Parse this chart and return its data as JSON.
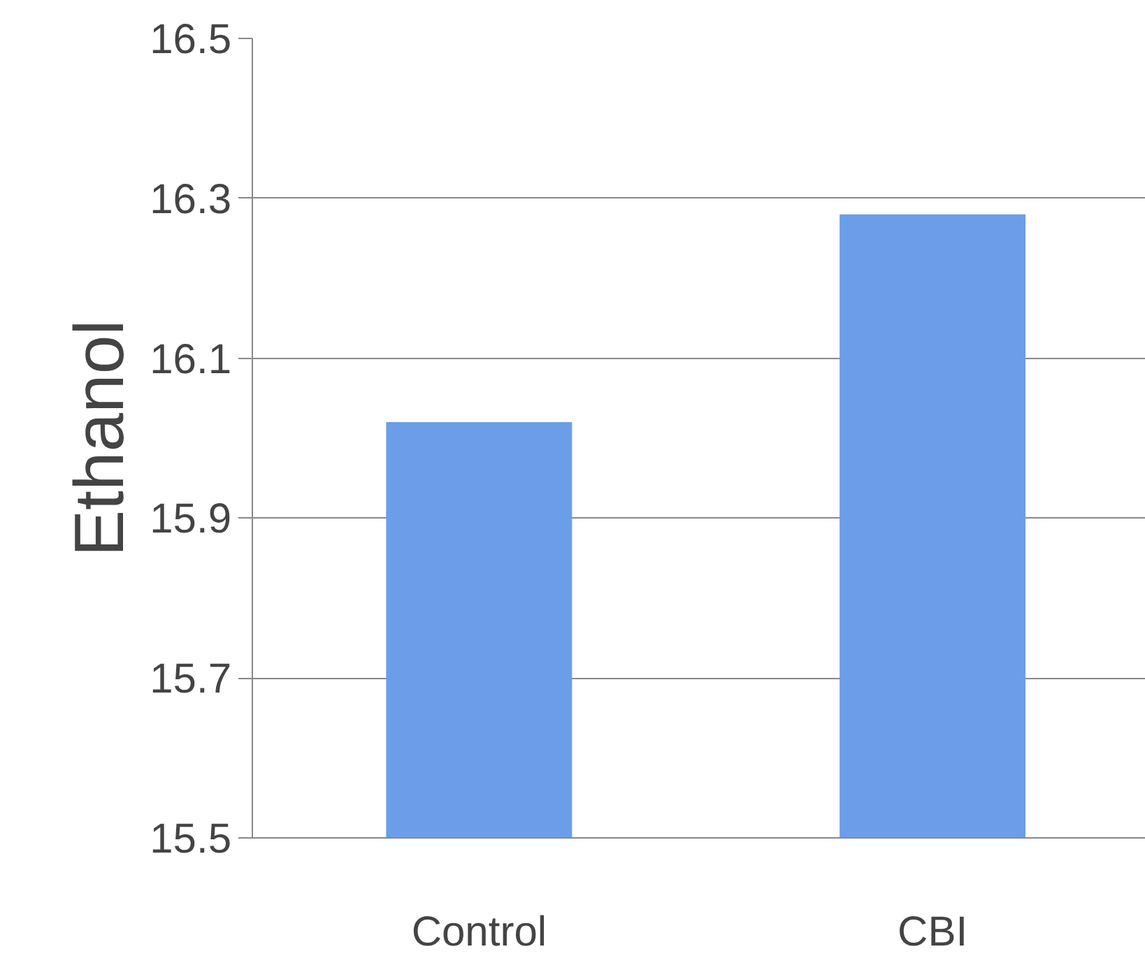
{
  "chart_data": {
    "type": "bar",
    "ylabel": "Ethanol",
    "categories": [
      "Control",
      "CBI"
    ],
    "values": [
      16.02,
      16.28
    ],
    "color": "#6b9ee8",
    "ylim": [
      15.5,
      16.5
    ],
    "yticks": [
      {
        "value": 15.5,
        "label": "15.5"
      },
      {
        "value": 15.7,
        "label": "15.7"
      },
      {
        "value": 15.9,
        "label": "15.9"
      },
      {
        "value": 16.1,
        "label": "16.1"
      },
      {
        "value": 16.3,
        "label": "16.3"
      },
      {
        "value": 16.5,
        "label": "16.5"
      }
    ],
    "grid": "y"
  }
}
